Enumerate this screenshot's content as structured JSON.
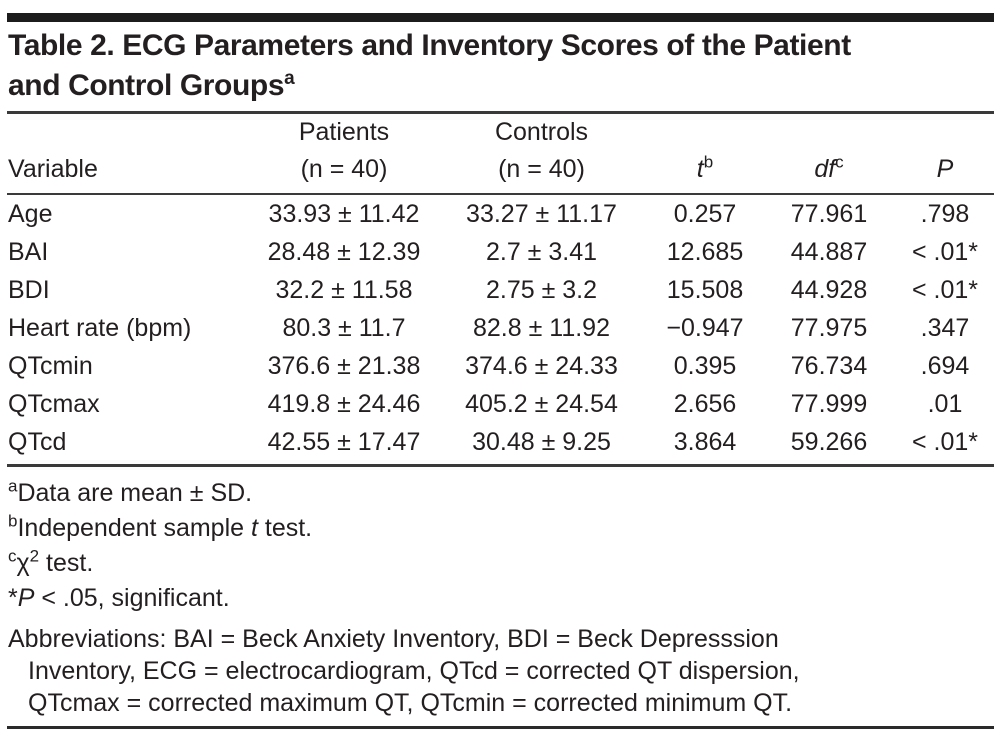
{
  "title": {
    "line1": "Table 2. ECG Parameters and Inventory Scores of the Patient",
    "line2": "and Control Groups",
    "sup": "a"
  },
  "table": {
    "columns": [
      {
        "label": "Variable"
      },
      {
        "label": "Patients",
        "sub": "(n = 40)"
      },
      {
        "label": "Controls",
        "sub": "(n = 40)"
      },
      {
        "label": "t",
        "sup": "b",
        "italic": true
      },
      {
        "label": "df",
        "sup": "c",
        "italic": true
      },
      {
        "label": "P",
        "italic": true
      }
    ],
    "rows": [
      {
        "variable": "Age",
        "patients": "33.93 ± 11.42",
        "controls": "33.27 ± 11.17",
        "t": "0.257",
        "df": "77.961",
        "p": ".798"
      },
      {
        "variable": "BAI",
        "patients": "28.48 ± 12.39",
        "controls": "2.7 ± 3.41",
        "t": "12.685",
        "df": "44.887",
        "p": "< .01*"
      },
      {
        "variable": "BDI",
        "patients": "32.2 ± 11.58",
        "controls": "2.75 ± 3.2",
        "t": "15.508",
        "df": "44.928",
        "p": "< .01*"
      },
      {
        "variable": "Heart rate (bpm)",
        "patients": "80.3 ± 11.7",
        "controls": "82.8 ± 11.92",
        "t": "−0.947",
        "df": "77.975",
        "p": ".347"
      },
      {
        "variable": "QTcmin",
        "patients": "376.6 ± 21.38",
        "controls": "374.6 ± 24.33",
        "t": "0.395",
        "df": "76.734",
        "p": ".694"
      },
      {
        "variable": "QTcmax",
        "patients": "419.8 ± 24.46",
        "controls": "405.2 ± 24.54",
        "t": "2.656",
        "df": "77.999",
        "p": ".01"
      },
      {
        "variable": "QTcd",
        "patients": "42.55 ± 17.47",
        "controls": "30.48 ± 9.25",
        "t": "3.864",
        "df": "59.266",
        "p": "< .01*"
      }
    ]
  },
  "footnotes": [
    {
      "marker": "a",
      "marker_sup": true,
      "segments": [
        {
          "t": "Data are mean ± SD."
        }
      ]
    },
    {
      "marker": "b",
      "marker_sup": true,
      "segments": [
        {
          "t": "Independent sample "
        },
        {
          "t": "t",
          "i": true
        },
        {
          "t": " test."
        }
      ]
    },
    {
      "marker": "c",
      "marker_sup": true,
      "segments": [
        {
          "t": "χ"
        },
        {
          "t": "2",
          "sup": true
        },
        {
          "t": " test."
        }
      ]
    },
    {
      "marker": "*",
      "marker_sup": false,
      "segments": [
        {
          "t": "P",
          "i": true
        },
        {
          "t": " < .05, significant."
        }
      ]
    }
  ],
  "abbreviations": {
    "lines": [
      "Abbreviations: BAI = Beck Anxiety Inventory, BDI = Beck Depresssion",
      "Inventory, ECG = electrocardiogram, QTcd = corrected QT dispersion,",
      "QTcmax = corrected maximum QT, QTcmin = corrected minimum QT."
    ]
  }
}
